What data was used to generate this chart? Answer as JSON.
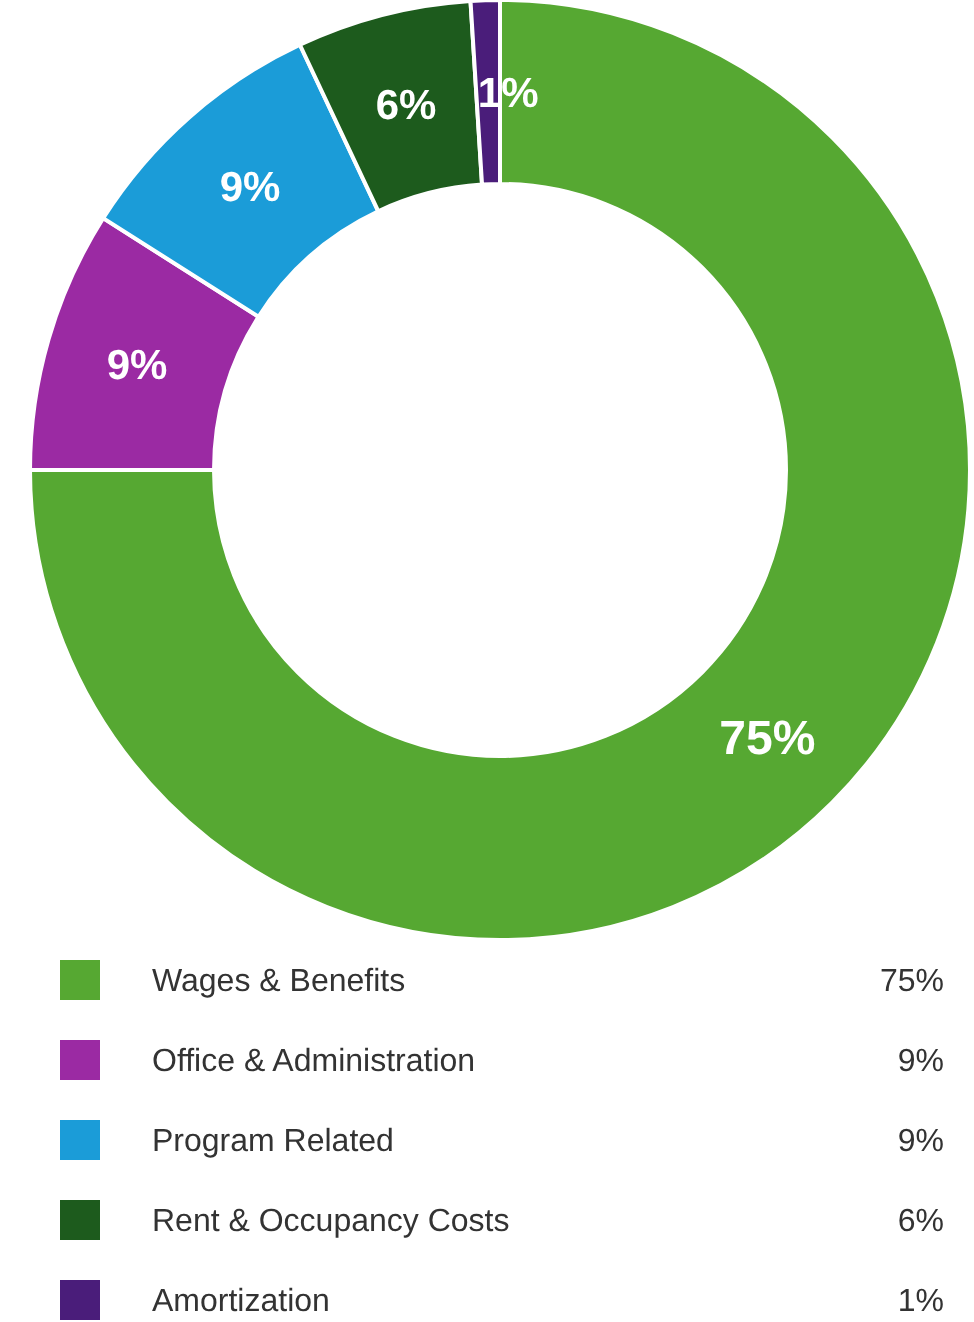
{
  "chart_data": {
    "type": "donut",
    "categories": [
      "Wages & Benefits",
      "Office & Administration",
      "Program Related",
      "Rent & Occupancy Costs",
      "Amortization"
    ],
    "values": [
      75,
      9,
      9,
      6,
      1
    ],
    "colors": [
      "#56a832",
      "#9b2aa3",
      "#1b9cd8",
      "#1d5b1d",
      "#4a1d7a"
    ],
    "value_labels": [
      "75%",
      "9%",
      "9%",
      "6%",
      "1%"
    ],
    "legend": "bottom"
  }
}
